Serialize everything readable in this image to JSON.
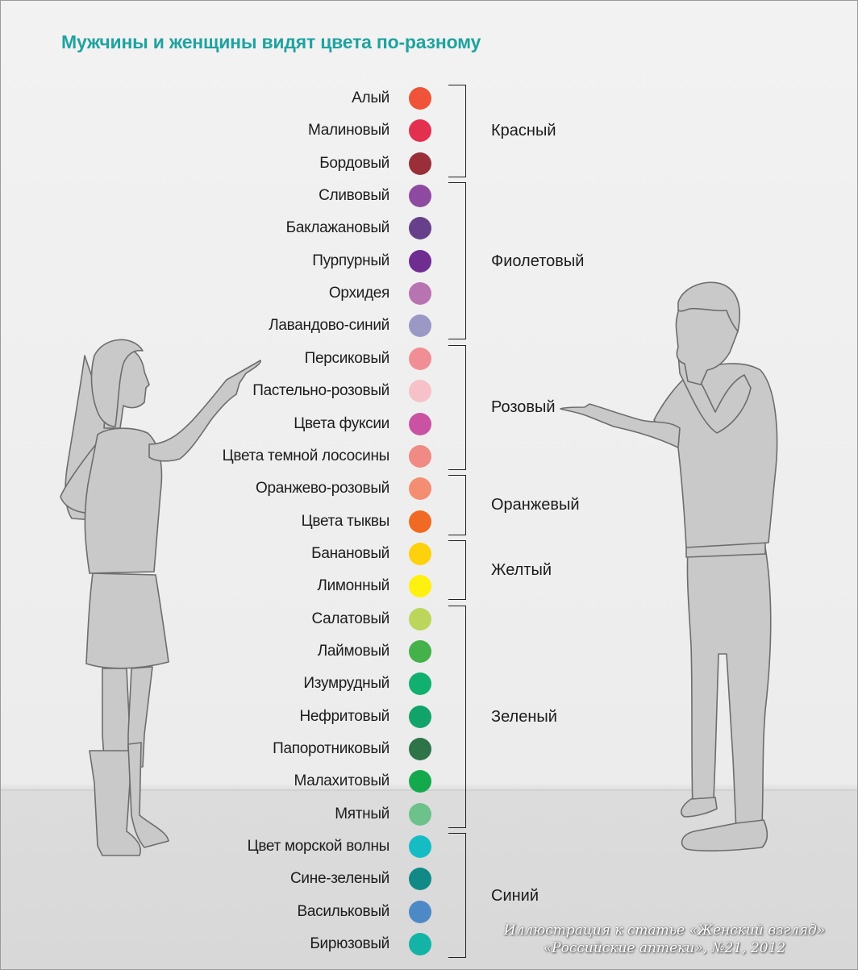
{
  "title": "Мужчины и женщины видят цвета по-разному",
  "groups": [
    {
      "name": "Красный",
      "shades": [
        {
          "name": "Алый",
          "color": "#ef533a"
        },
        {
          "name": "Малиновый",
          "color": "#e4304f"
        },
        {
          "name": "Бордовый",
          "color": "#9a2f3a"
        }
      ]
    },
    {
      "name": "Фиолетовый",
      "shades": [
        {
          "name": "Сливовый",
          "color": "#8e4aa0"
        },
        {
          "name": "Баклажановый",
          "color": "#66408a"
        },
        {
          "name": "Пурпурный",
          "color": "#6f2d91"
        },
        {
          "name": "Орхидея",
          "color": "#b774b0"
        },
        {
          "name": "Лавандово-синий",
          "color": "#9c98c6"
        }
      ]
    },
    {
      "name": "Розовый",
      "shades": [
        {
          "name": "Персиковый",
          "color": "#f18e95"
        },
        {
          "name": "Пастельно-розовый",
          "color": "#f6c1c9"
        },
        {
          "name": "Цвета фуксии",
          "color": "#c953a2"
        },
        {
          "name": "Цвета темной лососины",
          "color": "#ef8a84"
        }
      ]
    },
    {
      "name": "Оранжевый",
      "shades": [
        {
          "name": "Оранжево-розовый",
          "color": "#f48e73"
        },
        {
          "name": "Цвета тыквы",
          "color": "#f06a24"
        }
      ]
    },
    {
      "name": "Желтый",
      "shades": [
        {
          "name": "Банановый",
          "color": "#fdd10b"
        },
        {
          "name": "Лимонный",
          "color": "#fff10f"
        }
      ]
    },
    {
      "name": "Зеленый",
      "shades": [
        {
          "name": "Салатовый",
          "color": "#bcd65c"
        },
        {
          "name": "Лаймовый",
          "color": "#45b14a"
        },
        {
          "name": "Изумрудный",
          "color": "#11b06e"
        },
        {
          "name": "Нефритовый",
          "color": "#12a36b"
        },
        {
          "name": "Папоротниковый",
          "color": "#2e7449"
        },
        {
          "name": "Малахитовый",
          "color": "#15a94e"
        },
        {
          "name": "Мятный",
          "color": "#6cc28a"
        }
      ]
    },
    {
      "name": "Синий",
      "shades": [
        {
          "name": "Цвет морской волны",
          "color": "#16bcc4"
        },
        {
          "name": "Сине-зеленый",
          "color": "#118a87"
        },
        {
          "name": "Васильковый",
          "color": "#4d88c7"
        },
        {
          "name": "Бирюзовый",
          "color": "#13b4a5"
        }
      ]
    }
  ],
  "credit": {
    "line1": "Иллюстрация к статье «Женский взгляд»",
    "line2": "«Российские аптеки», №21, 2012"
  }
}
